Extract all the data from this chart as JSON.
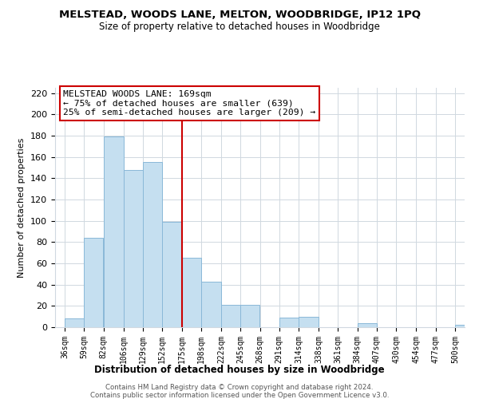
{
  "title": "MELSTEAD, WOODS LANE, MELTON, WOODBRIDGE, IP12 1PQ",
  "subtitle": "Size of property relative to detached houses in Woodbridge",
  "xlabel": "Distribution of detached houses by size in Woodbridge",
  "ylabel": "Number of detached properties",
  "bar_color": "#c5dff0",
  "bar_edge_color": "#8ab8d8",
  "categories": [
    "36sqm",
    "59sqm",
    "82sqm",
    "106sqm",
    "129sqm",
    "152sqm",
    "175sqm",
    "198sqm",
    "222sqm",
    "245sqm",
    "268sqm",
    "291sqm",
    "314sqm",
    "338sqm",
    "361sqm",
    "384sqm",
    "407sqm",
    "430sqm",
    "454sqm",
    "477sqm",
    "500sqm"
  ],
  "values": [
    8,
    84,
    179,
    148,
    155,
    99,
    65,
    43,
    21,
    21,
    0,
    9,
    10,
    0,
    0,
    4,
    0,
    0,
    0,
    0,
    2
  ],
  "ylim": [
    0,
    225
  ],
  "yticks": [
    0,
    20,
    40,
    60,
    80,
    100,
    120,
    140,
    160,
    180,
    200,
    220
  ],
  "annotation_box_text": "MELSTEAD WOODS LANE: 169sqm\n← 75% of detached houses are smaller (639)\n25% of semi-detached houses are larger (209) →",
  "footer_line1": "Contains HM Land Registry data © Crown copyright and database right 2024.",
  "footer_line2": "Contains public sector information licensed under the Open Government Licence v3.0.",
  "background_color": "#ffffff",
  "grid_color": "#d0d8e0",
  "annotation_box_edge_color": "#cc0000",
  "property_line_color": "#cc0000",
  "bin_edges": [
    36,
    59,
    82,
    106,
    129,
    152,
    175,
    198,
    222,
    245,
    268,
    291,
    314,
    338,
    361,
    384,
    407,
    430,
    454,
    477,
    500
  ],
  "red_line_x": 175
}
